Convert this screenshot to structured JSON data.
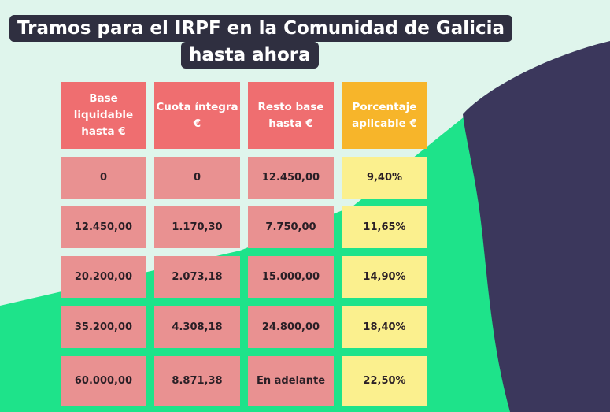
{
  "title": {
    "line1": "Tramos para el IRPF en la Comunidad de Galicia",
    "line2": "hasta ahora"
  },
  "table": {
    "headers": [
      "Base liquidable hasta €",
      "Cuota íntegra €",
      "Resto base hasta €",
      "Porcentaje aplicable €"
    ],
    "rows": [
      [
        "0",
        "0",
        "12.450,00",
        "9,40%"
      ],
      [
        "12.450,00",
        "1.170,30",
        "7.750,00",
        "11,65%"
      ],
      [
        "20.200,00",
        "2.073,18",
        "15.000,00",
        "14,90%"
      ],
      [
        "35.200,00",
        "4.308,18",
        "24.800,00",
        "18,40%"
      ],
      [
        "60.000,00",
        "8.871,38",
        "En adelante",
        "22,50%"
      ]
    ]
  },
  "colors": {
    "background_mint": "#dff5ec",
    "green": "#1ee38a",
    "navy": "#3b375c",
    "title_bg": "#2f2f40",
    "header_red": "#ef6e70",
    "header_orange": "#f7b52a",
    "cell_pink": "#e99191",
    "cell_yellow": "#fbf08e"
  }
}
